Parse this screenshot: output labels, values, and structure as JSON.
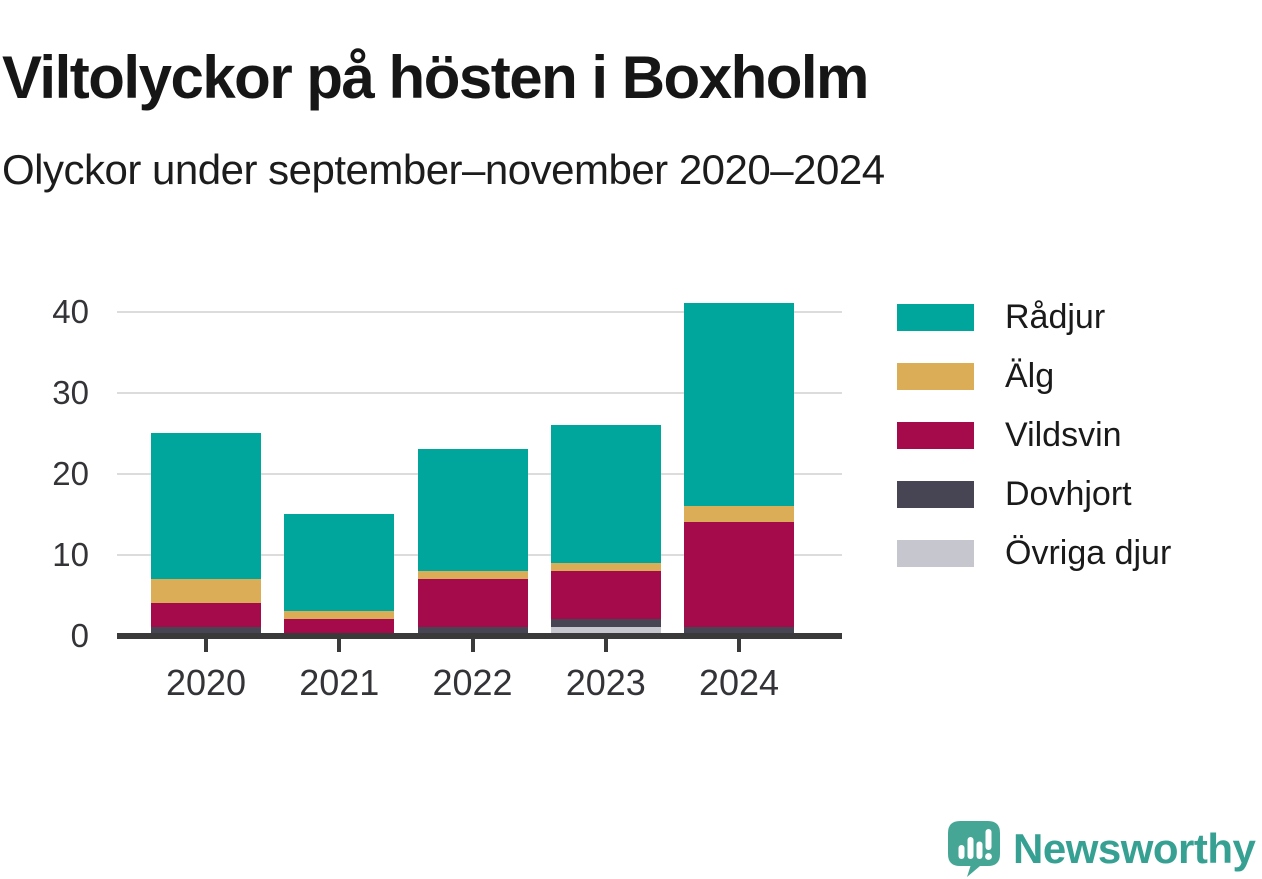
{
  "header": {
    "title": "Viltolyckor på hösten i Boxholm",
    "subtitle": "Olyckor under september–november 2020–2024"
  },
  "chart_data": {
    "type": "bar",
    "stacked": true,
    "title": "Viltolyckor på hösten i Boxholm",
    "subtitle": "Olyckor under september–november 2020–2024",
    "categories": [
      "2020",
      "2021",
      "2022",
      "2023",
      "2024"
    ],
    "series": [
      {
        "name": "Rådjur",
        "color": "#00A69B",
        "values": [
          18,
          12,
          15,
          17,
          25
        ]
      },
      {
        "name": "Älg",
        "color": "#DCAD57",
        "values": [
          3,
          1,
          1,
          1,
          2
        ]
      },
      {
        "name": "Vildsvin",
        "color": "#A50B4B",
        "values": [
          3,
          2,
          6,
          6,
          13
        ]
      },
      {
        "name": "Dovhjort",
        "color": "#474554",
        "values": [
          1,
          0,
          1,
          1,
          1
        ]
      },
      {
        "name": "Övriga djur",
        "color": "#C6C6CF",
        "values": [
          0,
          0,
          0,
          1,
          0
        ]
      }
    ],
    "stack_order_bottom_to_top": [
      "Övriga djur",
      "Dovhjort",
      "Vildsvin",
      "Älg",
      "Rådjur"
    ],
    "yticks": [
      0,
      10,
      20,
      30,
      40
    ],
    "ylim": [
      0,
      41
    ],
    "xlabel": "",
    "ylabel": "",
    "grid": "horizontal",
    "legend_position": "right",
    "grid_color": "#DCDCDC",
    "axis_color": "#3A3A3A",
    "tick_label_color": "#333338"
  },
  "branding": {
    "logo_text": "Newsworthy",
    "logo_text_color": "#36A192",
    "logo_icon_color": "#46A695",
    "logo_icon_name": "newsworthy-speech-bubble-chart-icon"
  }
}
